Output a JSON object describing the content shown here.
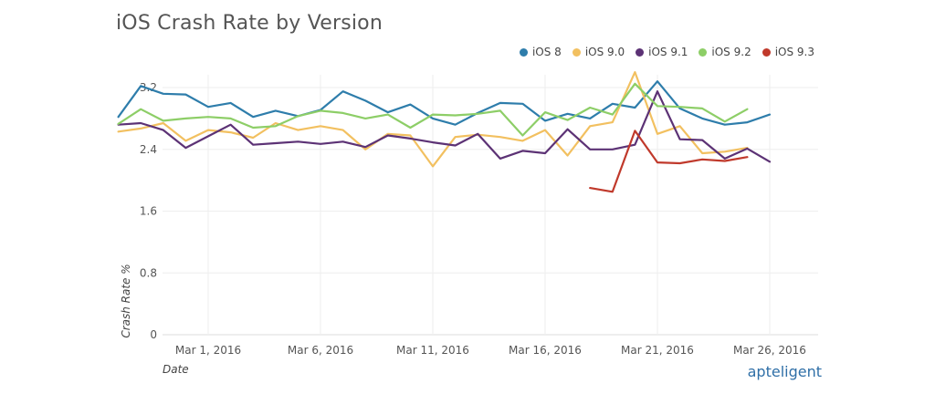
{
  "chart_data": {
    "type": "line",
    "title": "iOS Crash Rate by Version",
    "xlabel": "Date",
    "ylabel": "Crash Rate %",
    "ylim": [
      0,
      3.2
    ],
    "yticks": [
      0,
      0.8,
      1.6,
      2.4,
      3.2
    ],
    "ytick_labels": [
      "0",
      "0.8",
      "1.6",
      "2.4",
      "3.2"
    ],
    "xtick_dates": [
      "2016-03-01",
      "2016-03-06",
      "2016-03-11",
      "2016-03-16",
      "2016-03-21",
      "2016-03-26"
    ],
    "xtick_labels": [
      "Mar 1, 2016",
      "Mar 6, 2016",
      "Mar 11, 2016",
      "Mar 16, 2016",
      "Mar 21, 2016",
      "Mar 26, 2016"
    ],
    "grid": true,
    "legend_position": "top-right",
    "x": [
      "2016-02-26",
      "2016-02-27",
      "2016-02-28",
      "2016-02-29",
      "2016-03-01",
      "2016-03-02",
      "2016-03-03",
      "2016-03-04",
      "2016-03-05",
      "2016-03-06",
      "2016-03-07",
      "2016-03-08",
      "2016-03-09",
      "2016-03-10",
      "2016-03-11",
      "2016-03-12",
      "2016-03-13",
      "2016-03-14",
      "2016-03-15",
      "2016-03-16",
      "2016-03-17",
      "2016-03-18",
      "2016-03-19",
      "2016-03-20",
      "2016-03-21",
      "2016-03-22",
      "2016-03-23",
      "2016-03-24",
      "2016-03-25",
      "2016-03-26",
      "2016-03-27",
      "2016-03-28",
      "2016-03-29"
    ],
    "series": [
      {
        "name": "iOS 8",
        "color": "#2e7dab",
        "values": [
          2.82,
          3.22,
          3.12,
          3.11,
          2.95,
          3.0,
          2.82,
          2.9,
          2.83,
          2.91,
          3.15,
          3.03,
          2.88,
          2.98,
          2.8,
          2.72,
          2.87,
          3.0,
          2.99,
          2.77,
          2.86,
          2.8,
          2.99,
          2.94,
          3.28,
          2.93,
          2.8,
          2.72,
          2.75,
          2.85,
          null,
          null,
          null
        ]
      },
      {
        "name": "iOS 9.0",
        "color": "#f2c060",
        "values": [
          2.63,
          2.67,
          2.74,
          2.51,
          2.65,
          2.62,
          2.55,
          2.74,
          2.65,
          2.7,
          2.65,
          2.4,
          2.6,
          2.58,
          2.18,
          2.56,
          2.59,
          2.56,
          2.51,
          2.65,
          2.32,
          2.7,
          2.75,
          3.4,
          2.6,
          2.7,
          2.35,
          2.37,
          2.42,
          null,
          null,
          null,
          null
        ]
      },
      {
        "name": "iOS 9.1",
        "color": "#5c3275",
        "values": [
          2.72,
          2.74,
          2.65,
          2.42,
          2.57,
          2.72,
          2.46,
          2.48,
          2.5,
          2.47,
          2.5,
          2.43,
          2.58,
          2.54,
          2.49,
          2.45,
          2.6,
          2.28,
          2.38,
          2.35,
          2.66,
          2.4,
          2.4,
          2.46,
          3.15,
          2.53,
          2.52,
          2.28,
          2.41,
          2.24,
          null,
          null,
          null
        ]
      },
      {
        "name": "iOS 9.2",
        "color": "#8dce67",
        "values": [
          2.73,
          2.92,
          2.77,
          2.8,
          2.82,
          2.8,
          2.68,
          2.7,
          2.83,
          2.9,
          2.87,
          2.8,
          2.85,
          2.68,
          2.85,
          2.84,
          2.86,
          2.9,
          2.58,
          2.88,
          2.78,
          2.94,
          2.85,
          3.25,
          2.96,
          2.95,
          2.93,
          2.76,
          2.92,
          null,
          null,
          null,
          null
        ]
      },
      {
        "name": "iOS 9.3",
        "color": "#c0392b",
        "values": [
          null,
          null,
          null,
          null,
          null,
          null,
          null,
          null,
          null,
          null,
          null,
          null,
          null,
          null,
          null,
          null,
          null,
          null,
          null,
          null,
          null,
          1.9,
          1.85,
          2.64,
          2.23,
          2.22,
          2.27,
          2.25,
          2.3,
          null,
          null,
          null,
          null
        ]
      }
    ]
  },
  "branding": {
    "logo_text": "apteligent"
  }
}
